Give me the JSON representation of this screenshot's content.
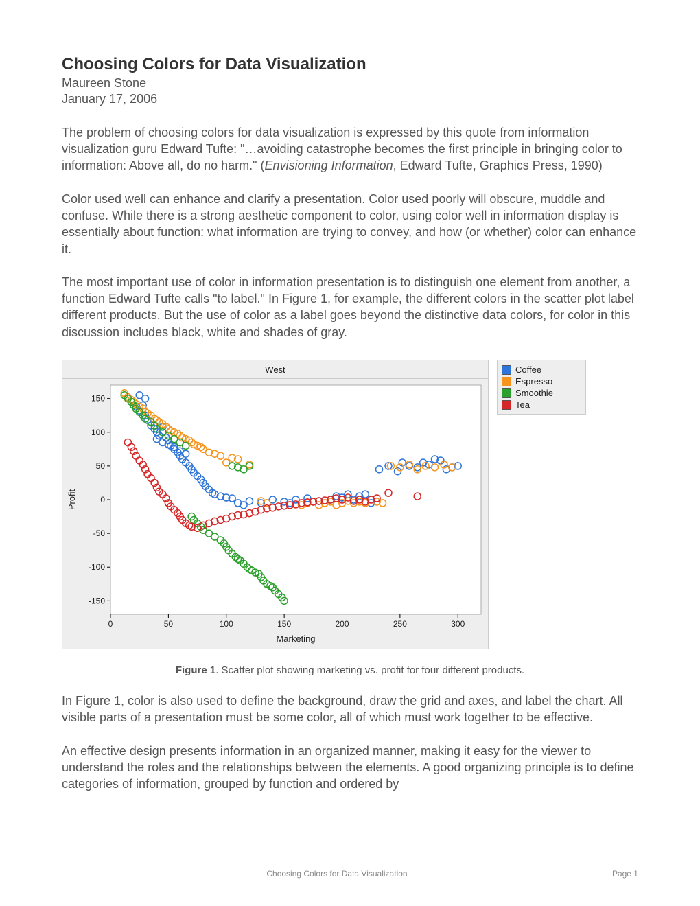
{
  "header": {
    "title": "Choosing Colors for Data Visualization",
    "author": "Maureen Stone",
    "date": "January 17, 2006"
  },
  "paragraphs": {
    "p1a": "The problem of choosing colors for data visualization is expressed by this quote from information visualization guru Edward Tufte: \"…avoiding catastrophe becomes the first principle in bringing color to information: Above all, do no harm.\" (",
    "p1b": "Envisioning Information",
    "p1c": ", Edward Tufte, Graphics Press, 1990)",
    "p2": "Color used well can enhance and clarify a presentation. Color used poorly will obscure, muddle and confuse. While there is a strong aesthetic component to color, using color well in information display is essentially about function: what information are trying to convey, and how (or whether) color can enhance it.",
    "p3": "The most important use of color in information presentation is to distinguish one element from another, a function Edward Tufte calls \"to label.\" In Figure 1, for example, the different colors in the scatter plot label different products. But the use of color as a label goes beyond the distinctive data colors, for color in this discussion includes black, white and shades of gray.",
    "p4": "In Figure 1, color is also used to define the background, draw the grid and axes, and label the chart. All visible parts of a presentation must be some color, all of which must work together to be effective.",
    "p5": "An effective design presents information in an organized manner, making it easy for the viewer to understand the roles and the relationships between the elements. A good organizing principle is to define categories of information, grouped by function and ordered by"
  },
  "figure1": {
    "type": "scatter",
    "title": "West",
    "xlabel": "Marketing",
    "ylabel": "Profit",
    "background_color": "#eeeeee",
    "plot_background": "#ffffff",
    "border_color": "#cccccc",
    "tick_color": "#000000",
    "label_fontsize": 13,
    "tick_fontsize": 12,
    "xlim": [
      0,
      320
    ],
    "ylim": [
      -170,
      170
    ],
    "xticks": [
      0,
      50,
      100,
      150,
      200,
      250,
      300
    ],
    "yticks": [
      -150,
      -100,
      -50,
      0,
      50,
      100,
      150
    ],
    "marker_style": "circle-open",
    "marker_size": 5,
    "marker_stroke_width": 1.5,
    "legend": {
      "title": null,
      "items": [
        {
          "label": "Coffee",
          "color": "#2e75d9"
        },
        {
          "label": "Espresso",
          "color": "#f7941d"
        },
        {
          "label": "Smoothie",
          "color": "#2ca02c"
        },
        {
          "label": "Tea",
          "color": "#d62728"
        }
      ]
    },
    "series": {
      "Coffee": {
        "color": "#2e75d9",
        "points": [
          [
            18,
            145
          ],
          [
            22,
            138
          ],
          [
            25,
            132
          ],
          [
            28,
            140
          ],
          [
            30,
            125
          ],
          [
            32,
            118
          ],
          [
            35,
            110
          ],
          [
            38,
            105
          ],
          [
            40,
            100
          ],
          [
            42,
            95
          ],
          [
            45,
            108
          ],
          [
            48,
            92
          ],
          [
            50,
            88
          ],
          [
            52,
            80
          ],
          [
            55,
            75
          ],
          [
            58,
            70
          ],
          [
            60,
            65
          ],
          [
            62,
            60
          ],
          [
            65,
            55
          ],
          [
            68,
            50
          ],
          [
            70,
            45
          ],
          [
            72,
            40
          ],
          [
            75,
            35
          ],
          [
            78,
            30
          ],
          [
            80,
            25
          ],
          [
            82,
            20
          ],
          [
            85,
            15
          ],
          [
            88,
            10
          ],
          [
            90,
            8
          ],
          [
            95,
            5
          ],
          [
            100,
            3
          ],
          [
            105,
            2
          ],
          [
            110,
            -5
          ],
          [
            115,
            -8
          ],
          [
            120,
            -2
          ],
          [
            130,
            -5
          ],
          [
            140,
            0
          ],
          [
            150,
            -3
          ],
          [
            155,
            -5
          ],
          [
            160,
            0
          ],
          [
            170,
            2
          ],
          [
            180,
            -2
          ],
          [
            190,
            0
          ],
          [
            195,
            5
          ],
          [
            200,
            3
          ],
          [
            205,
            8
          ],
          [
            210,
            0
          ],
          [
            215,
            5
          ],
          [
            220,
            8
          ],
          [
            225,
            -5
          ],
          [
            232,
            45
          ],
          [
            240,
            50
          ],
          [
            248,
            42
          ],
          [
            252,
            55
          ],
          [
            258,
            50
          ],
          [
            265,
            48
          ],
          [
            270,
            55
          ],
          [
            275,
            52
          ],
          [
            280,
            60
          ],
          [
            285,
            58
          ],
          [
            290,
            45
          ],
          [
            295,
            48
          ],
          [
            300,
            50
          ],
          [
            30,
            150
          ],
          [
            25,
            155
          ],
          [
            40,
            90
          ],
          [
            45,
            85
          ],
          [
            50,
            82
          ],
          [
            55,
            78
          ],
          [
            60,
            72
          ],
          [
            65,
            68
          ]
        ]
      },
      "Espresso": {
        "color": "#f7941d",
        "points": [
          [
            12,
            158
          ],
          [
            15,
            152
          ],
          [
            18,
            148
          ],
          [
            20,
            145
          ],
          [
            22,
            142
          ],
          [
            25,
            138
          ],
          [
            28,
            135
          ],
          [
            30,
            130
          ],
          [
            32,
            128
          ],
          [
            35,
            125
          ],
          [
            38,
            120
          ],
          [
            40,
            118
          ],
          [
            42,
            115
          ],
          [
            45,
            112
          ],
          [
            48,
            108
          ],
          [
            50,
            105
          ],
          [
            52,
            102
          ],
          [
            55,
            100
          ],
          [
            58,
            98
          ],
          [
            60,
            95
          ],
          [
            62,
            92
          ],
          [
            65,
            90
          ],
          [
            68,
            88
          ],
          [
            70,
            85
          ],
          [
            72,
            82
          ],
          [
            75,
            80
          ],
          [
            78,
            78
          ],
          [
            80,
            75
          ],
          [
            85,
            70
          ],
          [
            90,
            68
          ],
          [
            95,
            65
          ],
          [
            100,
            55
          ],
          [
            105,
            62
          ],
          [
            110,
            60
          ],
          [
            120,
            52
          ],
          [
            130,
            -2
          ],
          [
            135,
            -5
          ],
          [
            165,
            -8
          ],
          [
            170,
            -5
          ],
          [
            175,
            -3
          ],
          [
            180,
            -8
          ],
          [
            185,
            -5
          ],
          [
            190,
            -3
          ],
          [
            195,
            -8
          ],
          [
            200,
            -5
          ],
          [
            205,
            -2
          ],
          [
            210,
            -5
          ],
          [
            215,
            -3
          ],
          [
            220,
            -5
          ],
          [
            230,
            -3
          ],
          [
            235,
            -5
          ],
          [
            242,
            50
          ],
          [
            250,
            48
          ],
          [
            258,
            52
          ],
          [
            265,
            45
          ],
          [
            272,
            50
          ],
          [
            280,
            48
          ],
          [
            288,
            52
          ],
          [
            295,
            48
          ]
        ]
      },
      "Smoothie": {
        "color": "#2ca02c",
        "points": [
          [
            12,
            155
          ],
          [
            15,
            150
          ],
          [
            18,
            145
          ],
          [
            20,
            140
          ],
          [
            22,
            135
          ],
          [
            25,
            130
          ],
          [
            28,
            125
          ],
          [
            30,
            120
          ],
          [
            35,
            115
          ],
          [
            38,
            110
          ],
          [
            40,
            105
          ],
          [
            45,
            100
          ],
          [
            50,
            95
          ],
          [
            55,
            90
          ],
          [
            60,
            85
          ],
          [
            65,
            80
          ],
          [
            70,
            -25
          ],
          [
            72,
            -30
          ],
          [
            75,
            -35
          ],
          [
            78,
            -40
          ],
          [
            80,
            -45
          ],
          [
            85,
            -50
          ],
          [
            90,
            -55
          ],
          [
            95,
            -60
          ],
          [
            98,
            -65
          ],
          [
            100,
            -70
          ],
          [
            102,
            -75
          ],
          [
            105,
            -80
          ],
          [
            108,
            -85
          ],
          [
            110,
            -88
          ],
          [
            112,
            -90
          ],
          [
            115,
            -95
          ],
          [
            118,
            -100
          ],
          [
            120,
            -103
          ],
          [
            122,
            -105
          ],
          [
            125,
            -108
          ],
          [
            128,
            -110
          ],
          [
            130,
            -115
          ],
          [
            132,
            -120
          ],
          [
            135,
            -125
          ],
          [
            138,
            -128
          ],
          [
            140,
            -130
          ],
          [
            142,
            -135
          ],
          [
            145,
            -140
          ],
          [
            148,
            -145
          ],
          [
            150,
            -150
          ],
          [
            105,
            50
          ],
          [
            110,
            48
          ],
          [
            115,
            45
          ],
          [
            120,
            50
          ]
        ]
      },
      "Tea": {
        "color": "#d62728",
        "points": [
          [
            15,
            85
          ],
          [
            18,
            78
          ],
          [
            20,
            72
          ],
          [
            22,
            65
          ],
          [
            25,
            58
          ],
          [
            28,
            52
          ],
          [
            30,
            45
          ],
          [
            32,
            38
          ],
          [
            35,
            32
          ],
          [
            38,
            25
          ],
          [
            40,
            18
          ],
          [
            42,
            12
          ],
          [
            45,
            8
          ],
          [
            48,
            2
          ],
          [
            50,
            -5
          ],
          [
            52,
            -10
          ],
          [
            55,
            -15
          ],
          [
            58,
            -20
          ],
          [
            60,
            -25
          ],
          [
            62,
            -30
          ],
          [
            65,
            -35
          ],
          [
            68,
            -38
          ],
          [
            70,
            -40
          ],
          [
            75,
            -42
          ],
          [
            80,
            -38
          ],
          [
            85,
            -35
          ],
          [
            90,
            -32
          ],
          [
            95,
            -30
          ],
          [
            100,
            -28
          ],
          [
            105,
            -25
          ],
          [
            110,
            -23
          ],
          [
            115,
            -22
          ],
          [
            120,
            -20
          ],
          [
            125,
            -18
          ],
          [
            130,
            -15
          ],
          [
            135,
            -13
          ],
          [
            140,
            -12
          ],
          [
            145,
            -10
          ],
          [
            150,
            -9
          ],
          [
            155,
            -8
          ],
          [
            160,
            -7
          ],
          [
            165,
            -5
          ],
          [
            170,
            -4
          ],
          [
            175,
            -3
          ],
          [
            180,
            -2
          ],
          [
            185,
            -1
          ],
          [
            190,
            0
          ],
          [
            195,
            2
          ],
          [
            200,
            0
          ],
          [
            205,
            3
          ],
          [
            210,
            -2
          ],
          [
            215,
            0
          ],
          [
            220,
            -3
          ],
          [
            225,
            0
          ],
          [
            230,
            2
          ],
          [
            240,
            10
          ],
          [
            265,
            5
          ]
        ]
      }
    },
    "caption_label": "Figure 1",
    "caption_text": ". Scatter plot showing marketing vs. profit for four different products."
  },
  "footer": {
    "center": "Choosing Colors for Data Visualization",
    "right": "Page 1"
  }
}
